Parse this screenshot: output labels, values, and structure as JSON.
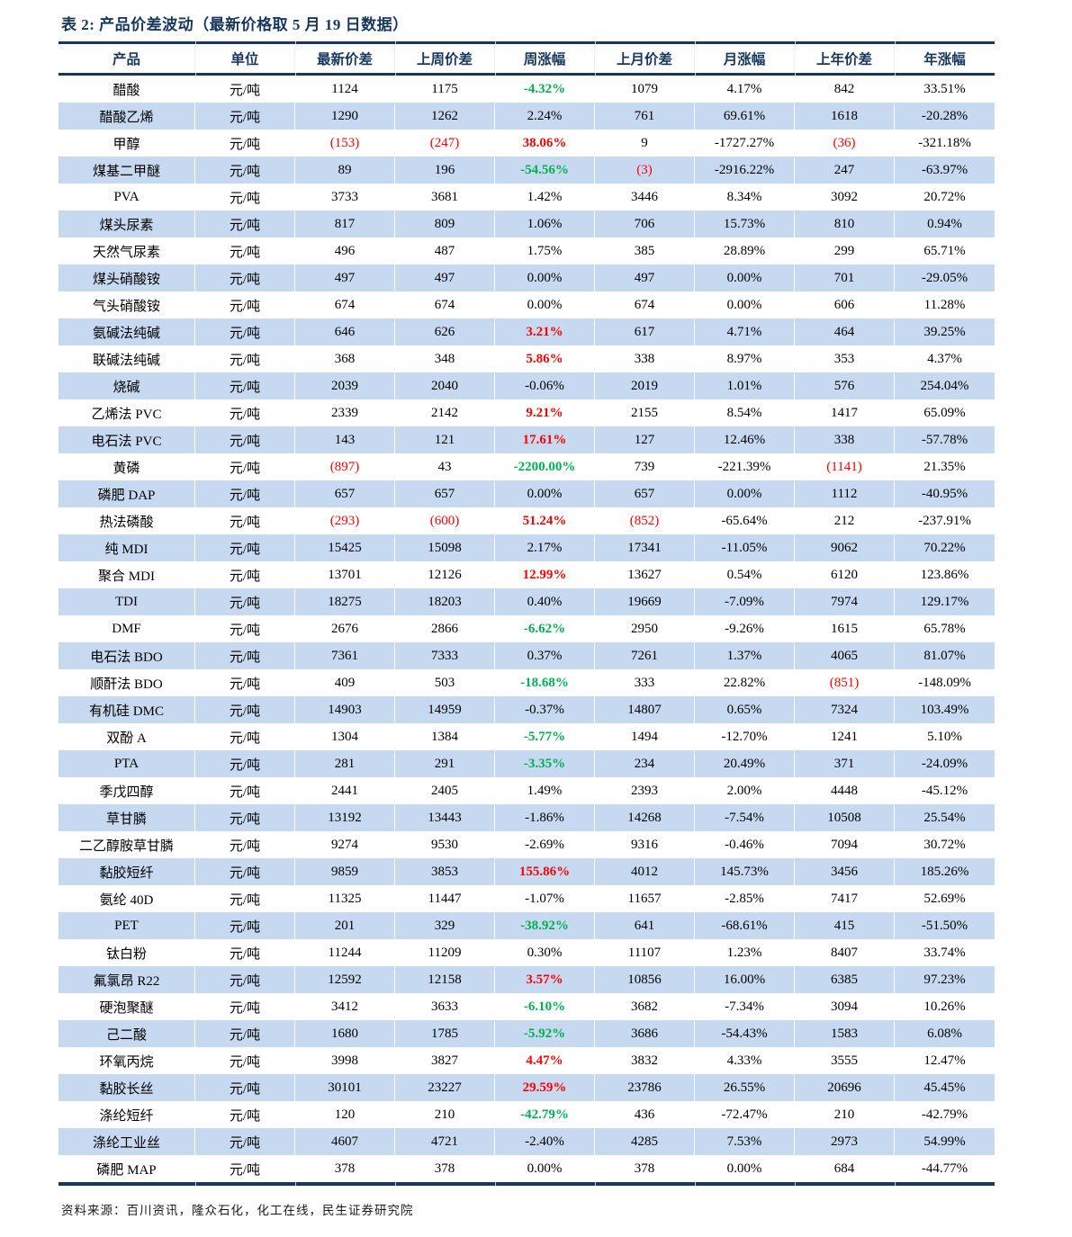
{
  "title": "表 2: 产品价差波动（最新价格取 5 月 19 日数据）",
  "source": "资料来源：百川资讯，隆众石化，化工在线，民生证券研究院",
  "colors": {
    "navy_accent": "#17375D",
    "alt_row_blue": "#C6D9F0",
    "rise_red": "#FE0000",
    "fall_green": "#00B050"
  },
  "table": {
    "columns": [
      "产品",
      "单位",
      "最新价差",
      "上周价差",
      "周涨幅",
      "上月价差",
      "月涨幅",
      "上年价差",
      "年涨幅"
    ],
    "week_change_color_threshold_pct": 3,
    "rows": [
      [
        "醋酸",
        "元/吨",
        "1124",
        "1175",
        "-4.32%",
        "1079",
        "4.17%",
        "842",
        "33.51%"
      ],
      [
        "醋酸乙烯",
        "元/吨",
        "1290",
        "1262",
        "2.24%",
        "761",
        "69.61%",
        "1618",
        "-20.28%"
      ],
      [
        "甲醇",
        "元/吨",
        "(153)",
        "(247)",
        "38.06%",
        "9",
        "-1727.27%",
        "(36)",
        "-321.18%"
      ],
      [
        "煤基二甲醚",
        "元/吨",
        "89",
        "196",
        "-54.56%",
        "(3)",
        "-2916.22%",
        "247",
        "-63.97%"
      ],
      [
        "PVA",
        "元/吨",
        "3733",
        "3681",
        "1.42%",
        "3446",
        "8.34%",
        "3092",
        "20.72%"
      ],
      [
        "煤头尿素",
        "元/吨",
        "817",
        "809",
        "1.06%",
        "706",
        "15.73%",
        "810",
        "0.94%"
      ],
      [
        "天然气尿素",
        "元/吨",
        "496",
        "487",
        "1.75%",
        "385",
        "28.89%",
        "299",
        "65.71%"
      ],
      [
        "煤头硝酸铵",
        "元/吨",
        "497",
        "497",
        "0.00%",
        "497",
        "0.00%",
        "701",
        "-29.05%"
      ],
      [
        "气头硝酸铵",
        "元/吨",
        "674",
        "674",
        "0.00%",
        "674",
        "0.00%",
        "606",
        "11.28%"
      ],
      [
        "氨碱法纯碱",
        "元/吨",
        "646",
        "626",
        "3.21%",
        "617",
        "4.71%",
        "464",
        "39.25%"
      ],
      [
        "联碱法纯碱",
        "元/吨",
        "368",
        "348",
        "5.86%",
        "338",
        "8.97%",
        "353",
        "4.37%"
      ],
      [
        "烧碱",
        "元/吨",
        "2039",
        "2040",
        "-0.06%",
        "2019",
        "1.01%",
        "576",
        "254.04%"
      ],
      [
        "乙烯法 PVC",
        "元/吨",
        "2339",
        "2142",
        "9.21%",
        "2155",
        "8.54%",
        "1417",
        "65.09%"
      ],
      [
        "电石法 PVC",
        "元/吨",
        "143",
        "121",
        "17.61%",
        "127",
        "12.46%",
        "338",
        "-57.78%"
      ],
      [
        "黄磷",
        "元/吨",
        "(897)",
        "43",
        "-2200.00%",
        "739",
        "-221.39%",
        "(1141)",
        "21.35%"
      ],
      [
        "磷肥 DAP",
        "元/吨",
        "657",
        "657",
        "0.00%",
        "657",
        "0.00%",
        "1112",
        "-40.95%"
      ],
      [
        "热法磷酸",
        "元/吨",
        "(293)",
        "(600)",
        "51.24%",
        "(852)",
        "-65.64%",
        "212",
        "-237.91%"
      ],
      [
        "纯 MDI",
        "元/吨",
        "15425",
        "15098",
        "2.17%",
        "17341",
        "-11.05%",
        "9062",
        "70.22%"
      ],
      [
        "聚合 MDI",
        "元/吨",
        "13701",
        "12126",
        "12.99%",
        "13627",
        "0.54%",
        "6120",
        "123.86%"
      ],
      [
        "TDI",
        "元/吨",
        "18275",
        "18203",
        "0.40%",
        "19669",
        "-7.09%",
        "7974",
        "129.17%"
      ],
      [
        "DMF",
        "元/吨",
        "2676",
        "2866",
        "-6.62%",
        "2950",
        "-9.26%",
        "1615",
        "65.78%"
      ],
      [
        "电石法 BDO",
        "元/吨",
        "7361",
        "7333",
        "0.37%",
        "7261",
        "1.37%",
        "4065",
        "81.07%"
      ],
      [
        "顺酐法 BDO",
        "元/吨",
        "409",
        "503",
        "-18.68%",
        "333",
        "22.82%",
        "(851)",
        "-148.09%"
      ],
      [
        "有机硅 DMC",
        "元/吨",
        "14903",
        "14959",
        "-0.37%",
        "14807",
        "0.65%",
        "7324",
        "103.49%"
      ],
      [
        "双酚 A",
        "元/吨",
        "1304",
        "1384",
        "-5.77%",
        "1494",
        "-12.70%",
        "1241",
        "5.10%"
      ],
      [
        "PTA",
        "元/吨",
        "281",
        "291",
        "-3.35%",
        "234",
        "20.49%",
        "371",
        "-24.09%"
      ],
      [
        "季戊四醇",
        "元/吨",
        "2441",
        "2405",
        "1.49%",
        "2393",
        "2.00%",
        "4448",
        "-45.12%"
      ],
      [
        "草甘膦",
        "元/吨",
        "13192",
        "13443",
        "-1.86%",
        "14268",
        "-7.54%",
        "10508",
        "25.54%"
      ],
      [
        "二乙醇胺草甘膦",
        "元/吨",
        "9274",
        "9530",
        "-2.69%",
        "9316",
        "-0.46%",
        "7094",
        "30.72%"
      ],
      [
        "黏胶短纤",
        "元/吨",
        "9859",
        "3853",
        "155.86%",
        "4012",
        "145.73%",
        "3456",
        "185.26%"
      ],
      [
        "氨纶 40D",
        "元/吨",
        "11325",
        "11447",
        "-1.07%",
        "11657",
        "-2.85%",
        "7417",
        "52.69%"
      ],
      [
        "PET",
        "元/吨",
        "201",
        "329",
        "-38.92%",
        "641",
        "-68.61%",
        "415",
        "-51.50%"
      ],
      [
        "钛白粉",
        "元/吨",
        "11244",
        "11209",
        "0.30%",
        "11107",
        "1.23%",
        "8407",
        "33.74%"
      ],
      [
        "氟氯昂 R22",
        "元/吨",
        "12592",
        "12158",
        "3.57%",
        "10856",
        "16.00%",
        "6385",
        "97.23%"
      ],
      [
        "硬泡聚醚",
        "元/吨",
        "3412",
        "3633",
        "-6.10%",
        "3682",
        "-7.34%",
        "3094",
        "10.26%"
      ],
      [
        "己二酸",
        "元/吨",
        "1680",
        "1785",
        "-5.92%",
        "3686",
        "-54.43%",
        "1583",
        "6.08%"
      ],
      [
        "环氧丙烷",
        "元/吨",
        "3998",
        "3827",
        "4.47%",
        "3832",
        "4.33%",
        "3555",
        "12.47%"
      ],
      [
        "黏胶长丝",
        "元/吨",
        "30101",
        "23227",
        "29.59%",
        "23786",
        "26.55%",
        "20696",
        "45.45%"
      ],
      [
        "涤纶短纤",
        "元/吨",
        "120",
        "210",
        "-42.79%",
        "436",
        "-72.47%",
        "210",
        "-42.79%"
      ],
      [
        "涤纶工业丝",
        "元/吨",
        "4607",
        "4721",
        "-2.40%",
        "4285",
        "7.53%",
        "2973",
        "54.99%"
      ],
      [
        "磷肥 MAP",
        "元/吨",
        "378",
        "378",
        "0.00%",
        "378",
        "0.00%",
        "684",
        "-44.77%"
      ]
    ]
  }
}
